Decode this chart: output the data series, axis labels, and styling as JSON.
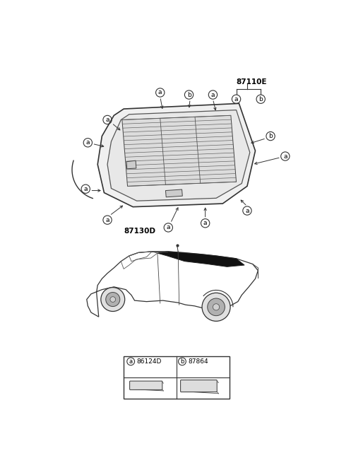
{
  "bg_color": "#ffffff",
  "fig_width": 4.8,
  "fig_height": 6.55,
  "dpi": 100,
  "label_87110E": "87110E",
  "label_87130D": "87130D",
  "label_86124D": "86124D",
  "label_87864": "87864",
  "line_color": "#333333",
  "grid_color": "#555555",
  "label_color": "#000000"
}
